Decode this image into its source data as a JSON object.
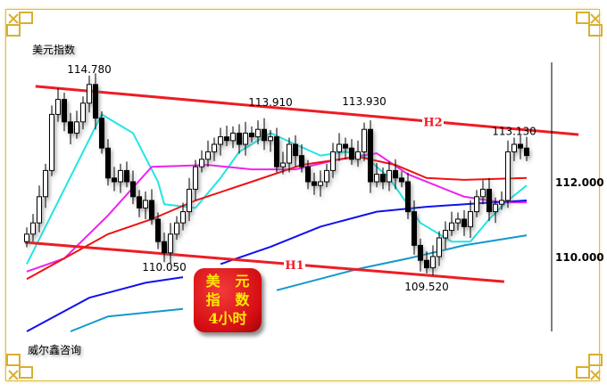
{
  "title": "美元指数",
  "footer": "威尔鑫咨询",
  "badge": {
    "line1a": "美",
    "line1b": "元",
    "line2a": "指",
    "line2b": "数",
    "line3": "4小时"
  },
  "chart_data": {
    "type": "candlestick",
    "title": "美元指数",
    "ylim": [
      107.5,
      115.5
    ],
    "y_ticks": [
      {
        "value": 112.0,
        "label": "112.000"
      },
      {
        "value": 110.0,
        "label": "110.000"
      }
    ],
    "grid": false,
    "closes": [
      110.6,
      110.9,
      111.6,
      112.3,
      113.8,
      114.2,
      113.6,
      113.3,
      113.6,
      114.1,
      114.6,
      113.7,
      112.9,
      112.1,
      112.0,
      112.3,
      112.0,
      111.6,
      111.3,
      111.5,
      111.0,
      110.4,
      110.1,
      110.6,
      110.9,
      111.2,
      111.8,
      112.4,
      112.6,
      112.8,
      113.0,
      113.2,
      113.1,
      113.3,
      113.0,
      113.3,
      113.2,
      113.4,
      113.1,
      113.2,
      112.4,
      112.5,
      113.0,
      112.7,
      112.4,
      112.0,
      111.9,
      112.0,
      112.3,
      112.8,
      113.0,
      112.9,
      112.6,
      112.8,
      113.4,
      112.0,
      112.2,
      112.0,
      112.3,
      112.1,
      112.0,
      111.2,
      110.3,
      109.9,
      109.7,
      110.0,
      110.5,
      110.7,
      110.9,
      111.0,
      110.8,
      111.2,
      111.6,
      111.8,
      111.2,
      111.4,
      111.5,
      112.8,
      113.0,
      112.9,
      112.7
    ],
    "moving_averages": [
      {
        "color": "#22e5e5",
        "points": [
          [
            0,
            109.8
          ],
          [
            12,
            113.8
          ],
          [
            17,
            113.3
          ],
          [
            21,
            112.0
          ],
          [
            22,
            111.4
          ],
          [
            27,
            111.3
          ],
          [
            31,
            112.1
          ],
          [
            34,
            112.8
          ],
          [
            39,
            113.3
          ],
          [
            43,
            113.0
          ],
          [
            47,
            112.7
          ],
          [
            51,
            112.8
          ],
          [
            54,
            112.7
          ],
          [
            58,
            112.1
          ],
          [
            63,
            110.9
          ],
          [
            68,
            110.4
          ],
          [
            71,
            110.4
          ],
          [
            74,
            111.0
          ],
          [
            77,
            111.5
          ],
          [
            80,
            111.9
          ]
        ]
      },
      {
        "color": "#ee22ee",
        "points": [
          [
            0,
            109.6
          ],
          [
            6,
            109.95
          ],
          [
            13,
            111.1
          ],
          [
            20,
            112.4
          ],
          [
            29,
            112.45
          ],
          [
            36,
            112.33
          ],
          [
            43,
            112.33
          ],
          [
            50,
            112.6
          ],
          [
            56,
            112.76
          ],
          [
            61,
            112.2
          ],
          [
            70,
            111.6
          ],
          [
            76,
            111.45
          ],
          [
            80,
            111.45
          ]
        ]
      },
      {
        "color": "#ee1111",
        "points": [
          [
            0,
            109.4
          ],
          [
            13,
            110.6
          ],
          [
            20,
            111.0
          ],
          [
            27,
            111.5
          ],
          [
            36,
            112.0
          ],
          [
            44,
            112.45
          ],
          [
            53,
            112.67
          ],
          [
            59,
            112.45
          ],
          [
            64,
            112.1
          ],
          [
            70,
            112.05
          ],
          [
            80,
            112.1
          ]
        ]
      },
      {
        "color": "#1111ee",
        "points": [
          [
            0,
            108.0
          ],
          [
            10,
            108.9
          ],
          [
            19,
            109.3
          ],
          [
            25,
            109.45
          ],
          null,
          [
            31,
            109.8
          ],
          [
            39,
            110.26
          ],
          [
            47,
            110.8
          ],
          [
            56,
            111.2
          ],
          [
            64,
            111.33
          ],
          [
            73,
            111.43
          ],
          [
            80,
            111.5
          ]
        ]
      },
      {
        "color": "#1199cc",
        "points": [
          [
            7,
            108.0
          ],
          [
            13,
            108.4
          ],
          [
            25,
            108.6
          ],
          null,
          [
            40,
            109.1
          ],
          [
            53,
            109.67
          ],
          [
            61,
            109.95
          ],
          [
            70,
            110.3
          ],
          [
            80,
            110.57
          ]
        ]
      }
    ],
    "channel_lines": [
      {
        "name": "H2",
        "color": "#ee1c24",
        "from": [
          1.4,
          114.55
        ],
        "to": [
          88.3,
          113.26
        ]
      },
      {
        "name": "H1",
        "color": "#ee1c24",
        "from": [
          -0.3,
          110.38
        ],
        "to": [
          76.4,
          109.33
        ]
      }
    ],
    "annotations": [
      {
        "label": "114.780",
        "index": 10,
        "value": 114.78
      },
      {
        "label": "113.910",
        "index": 39,
        "value": 113.91
      },
      {
        "label": "113.930",
        "index": 54,
        "value": 113.93
      },
      {
        "label": "113.130",
        "index": 78,
        "value": 113.13
      },
      {
        "label": "110.050",
        "index": 22,
        "value": 110.05
      },
      {
        "label": "109.520",
        "index": 64,
        "value": 109.52
      }
    ]
  }
}
